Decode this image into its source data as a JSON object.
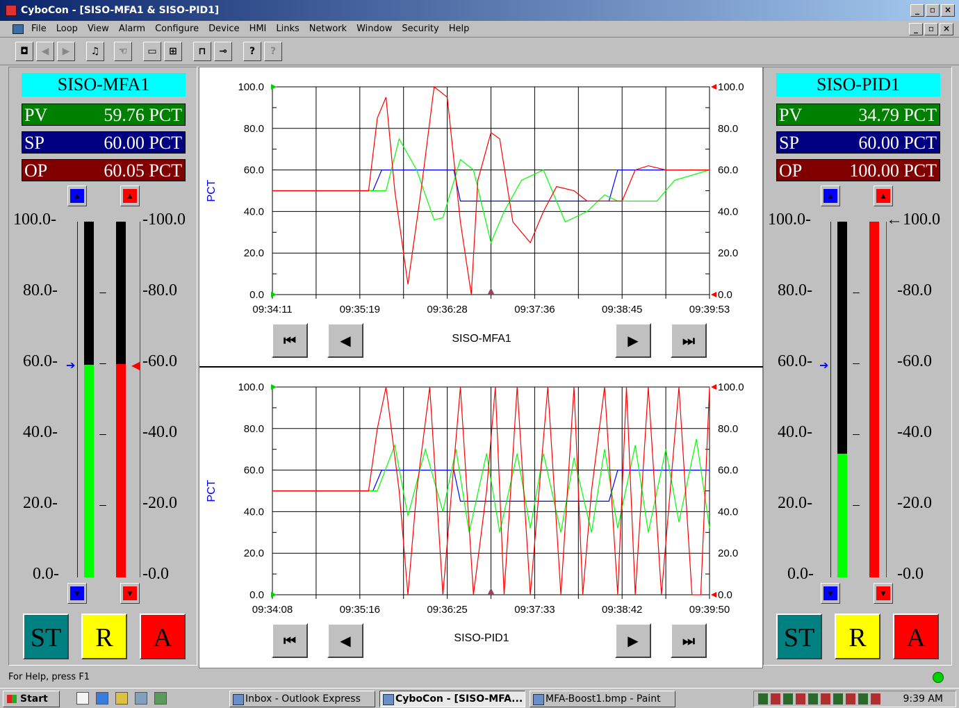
{
  "window": {
    "title": "CyboCon - [SISO-MFA1 & SISO-PID1]",
    "min": "_",
    "max": "▫",
    "close": "×"
  },
  "menu": [
    "File",
    "Loop",
    "View",
    "Alarm",
    "Configure",
    "Device",
    "HMI",
    "Links",
    "Network",
    "Window",
    "Security",
    "Help"
  ],
  "toolbar_icons": [
    "camera-icon",
    "back-icon",
    "forward-icon",
    "alarm-bell-icon",
    "hand-icon",
    "window-single-icon",
    "window-tile-icon",
    "lock-icon",
    "key-icon",
    "help-icon",
    "context-help-icon"
  ],
  "left": {
    "tag": "SISO-MFA1",
    "pv_label": "PV",
    "pv": "59.76 PCT",
    "sp_label": "SP",
    "sp": "60.00 PCT",
    "op_label": "OP",
    "op": "60.05 PCT",
    "scale_left": [
      "100.0-",
      "80.0-",
      "60.0-",
      "40.0-",
      "20.0-",
      "0.0-"
    ],
    "scale_right": [
      "-100.0",
      "-80.0",
      "-60.0",
      "-40.0",
      "-20.0",
      "-0.0"
    ],
    "pv_level": 0.5976,
    "op_level": 0.6005,
    "sp_level": 0.6,
    "st": "ST",
    "r": "R",
    "a": "A"
  },
  "right": {
    "tag": "SISO-PID1",
    "pv_label": "PV",
    "pv": "34.79 PCT",
    "sp_label": "SP",
    "sp": "60.00 PCT",
    "op_label": "OP",
    "op": "100.00 PCT",
    "scale_left": [
      "100.0-",
      "80.0-",
      "60.0-",
      "40.0-",
      "20.0-",
      "0.0-"
    ],
    "scale_right": [
      "←100.0",
      "-80.0",
      "-60.0",
      "-40.0",
      "-20.0",
      "-0.0"
    ],
    "pv_level": 0.3479,
    "op_level": 1.0,
    "sp_level": 0.6,
    "st": "ST",
    "r": "R",
    "a": "A"
  },
  "trend1": {
    "name": "SISO-MFA1",
    "ylabel": "PCT",
    "yticks": [
      "100.0",
      "80.0",
      "60.0",
      "40.0",
      "20.0",
      "0.0"
    ],
    "xticks": [
      "09:34:11",
      "09:35:19",
      "09:36:28",
      "09:37:36",
      "09:38:45",
      "09:39:53"
    ]
  },
  "trend2": {
    "name": "SISO-PID1",
    "ylabel": "PCT",
    "yticks": [
      "100.0",
      "80.0",
      "60.0",
      "40.0",
      "20.0",
      "0.0"
    ],
    "xticks": [
      "09:34:08",
      "09:35:16",
      "09:36:25",
      "09:37:33",
      "09:38:42",
      "09:39:50"
    ]
  },
  "chart_data": [
    {
      "type": "line",
      "title": "SISO-MFA1",
      "ylabel": "PCT",
      "ylim": [
        0,
        100
      ],
      "x_labels": [
        "09:34:11",
        "09:35:19",
        "09:36:28",
        "09:37:36",
        "09:38:45",
        "09:39:53"
      ],
      "series": [
        {
          "color": "#0000ff",
          "x": [
            0,
            0.23,
            0.25,
            0.415,
            0.43,
            0.77,
            0.79,
            1.0
          ],
          "values": [
            50,
            50,
            60,
            60,
            45,
            45,
            60,
            60
          ]
        },
        {
          "color": "#00ff00",
          "x": [
            0,
            0.22,
            0.26,
            0.29,
            0.33,
            0.37,
            0.39,
            0.43,
            0.46,
            0.5,
            0.53,
            0.57,
            0.62,
            0.67,
            0.72,
            0.76,
            0.79,
            0.84,
            0.88,
            0.92,
            1.0
          ],
          "values": [
            50,
            50,
            50,
            75,
            60,
            36,
            37,
            65,
            60,
            25,
            40,
            55,
            60,
            35,
            40,
            48,
            45,
            45,
            45,
            55,
            60
          ]
        },
        {
          "color": "#ff0000",
          "x": [
            0,
            0.22,
            0.24,
            0.26,
            0.28,
            0.31,
            0.34,
            0.37,
            0.4,
            0.43,
            0.455,
            0.47,
            0.5,
            0.52,
            0.55,
            0.59,
            0.62,
            0.65,
            0.69,
            0.72,
            0.76,
            0.8,
            0.83,
            0.86,
            0.9,
            1.0
          ],
          "values": [
            50,
            50,
            85,
            95,
            50,
            5,
            50,
            100,
            95,
            35,
            0,
            55,
            78,
            75,
            35,
            25,
            40,
            52,
            50,
            45,
            45,
            45,
            60,
            62,
            60,
            60
          ]
        }
      ]
    },
    {
      "type": "line",
      "title": "SISO-PID1",
      "ylabel": "PCT",
      "ylim": [
        0,
        100
      ],
      "x_labels": [
        "09:34:08",
        "09:35:16",
        "09:36:25",
        "09:37:33",
        "09:38:42",
        "09:39:50"
      ],
      "series": [
        {
          "color": "#0000ff",
          "x": [
            0,
            0.23,
            0.25,
            0.415,
            0.43,
            0.77,
            0.79,
            1.0
          ],
          "values": [
            50,
            50,
            60,
            60,
            45,
            45,
            60,
            60
          ]
        },
        {
          "color": "#00ff00",
          "x": [
            0,
            0.22,
            0.24,
            0.28,
            0.31,
            0.35,
            0.39,
            0.42,
            0.45,
            0.49,
            0.52,
            0.56,
            0.59,
            0.62,
            0.66,
            0.69,
            0.73,
            0.76,
            0.79,
            0.83,
            0.86,
            0.9,
            0.93,
            0.97,
            1.0
          ],
          "values": [
            50,
            50,
            50,
            72,
            38,
            70,
            40,
            70,
            30,
            68,
            30,
            68,
            32,
            68,
            30,
            66,
            30,
            70,
            32,
            72,
            30,
            70,
            35,
            75,
            32
          ]
        },
        {
          "color": "#ff0000",
          "x": [
            0,
            0.22,
            0.24,
            0.26,
            0.29,
            0.31,
            0.33,
            0.36,
            0.39,
            0.41,
            0.43,
            0.46,
            0.49,
            0.51,
            0.53,
            0.56,
            0.59,
            0.61,
            0.63,
            0.66,
            0.69,
            0.71,
            0.73,
            0.76,
            0.79,
            0.81,
            0.83,
            0.86,
            0.89,
            0.91,
            0.93,
            0.96,
            0.98,
            1.0
          ],
          "values": [
            50,
            50,
            80,
            100,
            50,
            0,
            50,
            100,
            0,
            50,
            100,
            0,
            50,
            100,
            0,
            100,
            0,
            50,
            100,
            0,
            100,
            0,
            50,
            100,
            0,
            100,
            0,
            100,
            0,
            50,
            100,
            0,
            0,
            100
          ]
        }
      ]
    }
  ],
  "status": {
    "help": "For Help, press F1"
  },
  "taskbar": {
    "start": "Start",
    "tasks": [
      "Inbox - Outlook Express",
      "CyboCon - [SISO-MFA...",
      "MFA-Boost1.bmp - Paint"
    ],
    "clock": "9:39 AM"
  }
}
